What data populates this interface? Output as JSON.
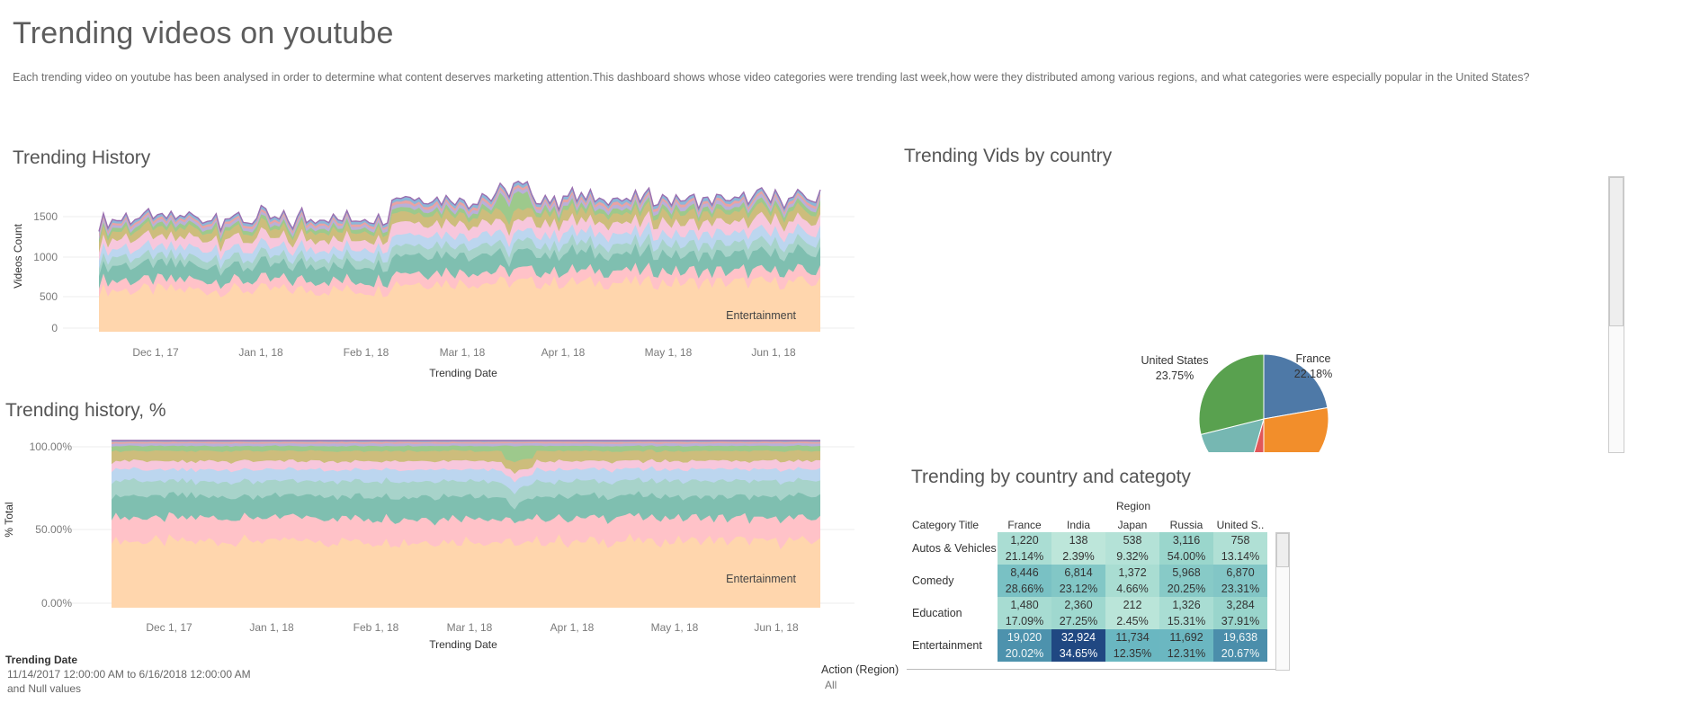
{
  "dashboard": {
    "title": "Trending videos on youtube",
    "description": "Each trending video on youtube has been analysed in order to determine what content deserves marketing attention.This dashboard shows whose video categories were trending last week,how were they distributed among various regions, and what categories were especially popular in the United States?"
  },
  "history": {
    "title": "Trending History",
    "ylabel": "Videos Count",
    "xlabel": "Trending Date",
    "yticks": [
      "1500",
      "1000",
      "500",
      "0"
    ],
    "xticks": [
      "Dec 1, 17",
      "Jan 1, 18",
      "Feb 1, 18",
      "Mar 1, 18",
      "Apr 1, 18",
      "May 1, 18",
      "Jun 1, 18"
    ],
    "bottom_label": "Entertainment"
  },
  "history_pct": {
    "title": "Trending history, %",
    "ylabel": "% Total",
    "xlabel": "Trending Date",
    "yticks": [
      "100.00%",
      "50.00%",
      "0.00%"
    ],
    "xticks": [
      "Dec 1, 17",
      "Jan 1, 18",
      "Feb 1, 18",
      "Mar 1, 18",
      "Apr 1, 18",
      "May 1, 18",
      "Jun 1, 18"
    ],
    "bottom_label": "Entertainment"
  },
  "country": {
    "title": "Trending Vids by country",
    "labels": [
      {
        "name": "United States",
        "pct": "23.75%"
      },
      {
        "name": "France",
        "pct": "22.18%"
      }
    ]
  },
  "category_table": {
    "title": "Trending by country and categoty",
    "column_group": "Region",
    "row_header": "Category Title",
    "columns": [
      "France",
      "India",
      "Japan",
      "Russia",
      "United S.."
    ],
    "rows": [
      {
        "category": "Autos & Vehicles",
        "counts": [
          "1,220",
          "138",
          "538",
          "3,116",
          "758"
        ],
        "pcts": [
          "21.14%",
          "2.39%",
          "9.32%",
          "54.00%",
          "13.14%"
        ]
      },
      {
        "category": "Comedy",
        "counts": [
          "8,446",
          "6,814",
          "1,372",
          "5,968",
          "6,870"
        ],
        "pcts": [
          "28.66%",
          "23.12%",
          "4.66%",
          "20.25%",
          "23.31%"
        ]
      },
      {
        "category": "Education",
        "counts": [
          "1,480",
          "2,360",
          "212",
          "1,326",
          "3,284"
        ],
        "pcts": [
          "17.09%",
          "27.25%",
          "2.45%",
          "15.31%",
          "37.91%"
        ]
      },
      {
        "category": "Entertainment",
        "counts": [
          "19,020",
          "32,924",
          "11,734",
          "11,692",
          "19,638"
        ],
        "pcts": [
          "20.02%",
          "34.65%",
          "12.35%",
          "12.31%",
          "20.67%"
        ]
      }
    ]
  },
  "filters": {
    "date_title": "Trending Date",
    "date_value": "11/14/2017 12:00:00 AM to 6/16/2018 12:00:00 AM",
    "date_null": "and Null values",
    "action_title": "Action (Region)",
    "action_value": "All"
  },
  "chart_data": [
    {
      "type": "area",
      "title": "Trending History",
      "xlabel": "Trending Date",
      "ylabel": "Videos Count",
      "xlim": [
        "2017-11-14",
        "2018-06-16"
      ],
      "ylim": [
        0,
        1800
      ],
      "grid": true,
      "stacked": true,
      "series_note_labels": [
        "Entertainment"
      ],
      "total_outline": [
        {
          "x": "2017-11-14",
          "y": 1480
        },
        {
          "x": "2017-12-01",
          "y": 1500
        },
        {
          "x": "2018-01-01",
          "y": 1500
        },
        {
          "x": "2018-02-01",
          "y": 1450
        },
        {
          "x": "2018-02-08",
          "y": 1790
        },
        {
          "x": "2018-03-01",
          "y": 1760
        },
        {
          "x": "2018-03-15",
          "y": 1520
        },
        {
          "x": "2018-04-01",
          "y": 1780
        },
        {
          "x": "2018-05-01",
          "y": 1780
        },
        {
          "x": "2018-06-01",
          "y": 1780
        },
        {
          "x": "2018-06-16",
          "y": 1760
        }
      ],
      "layer_colors": [
        "#ffd6ad",
        "#ffc2c8",
        "#7fbfb0",
        "#a7d3ca",
        "#bcd6ef",
        "#f7c7dc",
        "#cdbd7c",
        "#9dc98c",
        "#b9b0d8",
        "#e9a3a3",
        "#8cb6d8"
      ]
    },
    {
      "type": "area",
      "title": "Trending history, %",
      "xlabel": "Trending Date",
      "ylabel": "% Total",
      "ylim": [
        0,
        100
      ],
      "grid": true,
      "stacked": true,
      "normalized": true,
      "series_note_labels": [
        "Entertainment"
      ],
      "layer_colors": [
        "#ffd6ad",
        "#ffc2c8",
        "#7fbfb0",
        "#a7d3ca",
        "#bcd6ef",
        "#f7c7dc",
        "#cdbd7c",
        "#9dc98c",
        "#b9b0d8",
        "#e9a3a3",
        "#8cb6d8"
      ]
    },
    {
      "type": "pie",
      "title": "Trending Vids by country",
      "slices": [
        {
          "label": "France",
          "value": 22.18,
          "color": "#4e79a7"
        },
        {
          "label": "United States",
          "value": 23.75,
          "color": "#59a14f"
        },
        {
          "label": "",
          "value": null,
          "color": "#f28e2b"
        },
        {
          "label": "",
          "value": null,
          "color": "#e15759"
        },
        {
          "label": "",
          "value": null,
          "color": "#76b7b2"
        }
      ]
    },
    {
      "type": "heatmap",
      "title": "Trending by country and categoty",
      "x": [
        "France",
        "India",
        "Japan",
        "Russia",
        "United S.."
      ],
      "y": [
        "Autos & Vehicles",
        "Comedy",
        "Education",
        "Entertainment"
      ],
      "values": [
        [
          1220,
          138,
          538,
          3116,
          758
        ],
        [
          8446,
          6814,
          1372,
          5968,
          6870
        ],
        [
          1480,
          2360,
          212,
          1326,
          3284
        ],
        [
          19020,
          32924,
          11734,
          11692,
          19638
        ]
      ],
      "percent_of_row": [
        [
          21.14,
          2.39,
          9.32,
          54.0,
          13.14
        ],
        [
          28.66,
          23.12,
          4.66,
          20.25,
          23.31
        ],
        [
          17.09,
          27.25,
          2.45,
          15.31,
          37.91
        ],
        [
          20.02,
          34.65,
          12.35,
          12.31,
          20.67
        ]
      ]
    }
  ]
}
